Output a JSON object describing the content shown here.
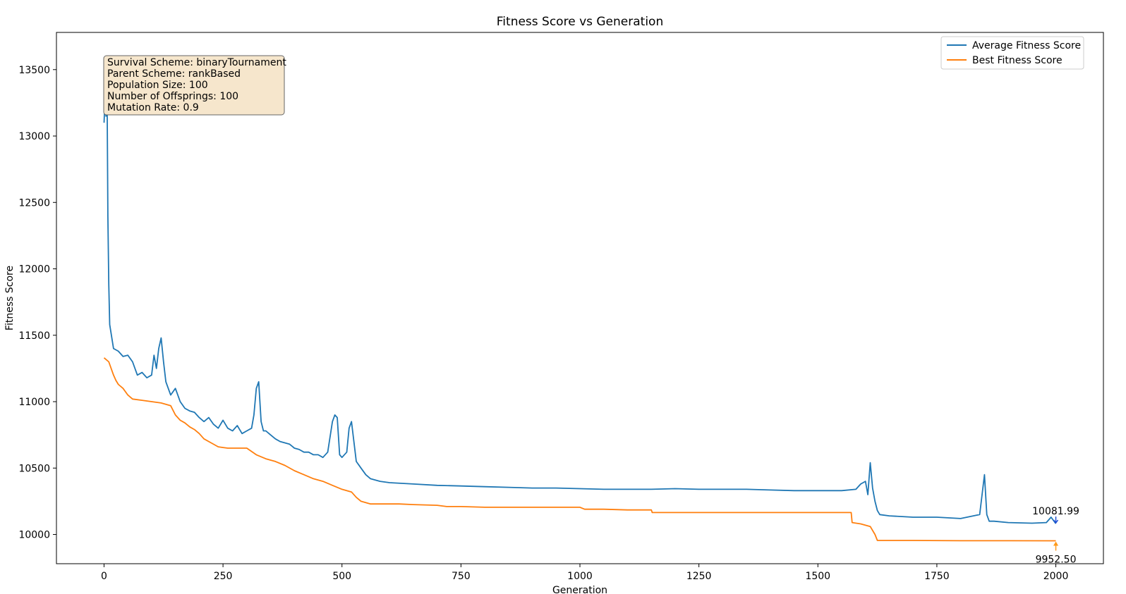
{
  "chart_data": {
    "type": "line",
    "title": "Fitness Score vs Generation",
    "xlabel": "Generation",
    "ylabel": "Fitness Score",
    "xlim": [
      -100,
      2100
    ],
    "ylim": [
      9780,
      13780
    ],
    "xticks": [
      0,
      250,
      500,
      750,
      1000,
      1250,
      1500,
      1750,
      2000
    ],
    "yticks": [
      10000,
      10500,
      11000,
      11500,
      12000,
      12500,
      13000,
      13500
    ],
    "grid": false,
    "legend_position": "top-right",
    "info_box": [
      "Survival Scheme: binaryTournament",
      "Parent Scheme: rankBased",
      "Population Size: 100",
      "Number of Offsprings: 100",
      "Mutation Rate: 0.9"
    ],
    "annotations": [
      {
        "text": "10081.99",
        "x": 2000,
        "y": 10081.99,
        "color": "#1f4fd6"
      },
      {
        "text": "9952.50",
        "x": 2000,
        "y": 9952.5,
        "color": "#ff9a1a"
      }
    ],
    "series": [
      {
        "name": "Average Fitness Score",
        "color": "#1f77b4",
        "x": [
          0,
          2,
          4,
          6,
          8,
          10,
          12,
          20,
          30,
          40,
          50,
          60,
          70,
          80,
          90,
          100,
          105,
          110,
          115,
          120,
          125,
          130,
          140,
          150,
          160,
          170,
          180,
          190,
          200,
          210,
          220,
          230,
          240,
          250,
          260,
          270,
          280,
          290,
          300,
          310,
          315,
          320,
          325,
          330,
          335,
          340,
          350,
          360,
          370,
          380,
          390,
          400,
          410,
          420,
          430,
          440,
          450,
          460,
          470,
          480,
          485,
          490,
          495,
          500,
          510,
          515,
          520,
          525,
          530,
          540,
          550,
          560,
          570,
          580,
          600,
          650,
          700,
          750,
          800,
          850,
          900,
          950,
          1000,
          1050,
          1100,
          1150,
          1200,
          1250,
          1300,
          1350,
          1400,
          1450,
          1500,
          1550,
          1580,
          1590,
          1600,
          1605,
          1610,
          1615,
          1620,
          1625,
          1630,
          1650,
          1700,
          1750,
          1800,
          1840,
          1850,
          1855,
          1860,
          1870,
          1900,
          1950,
          1980,
          1990,
          2000
        ],
        "y": [
          13100,
          13280,
          13150,
          13560,
          12400,
          11880,
          11580,
          11400,
          11380,
          11340,
          11350,
          11300,
          11200,
          11220,
          11180,
          11200,
          11350,
          11250,
          11400,
          11480,
          11300,
          11150,
          11050,
          11100,
          11000,
          10950,
          10930,
          10920,
          10880,
          10850,
          10880,
          10830,
          10800,
          10860,
          10800,
          10780,
          10820,
          10760,
          10780,
          10800,
          10900,
          11100,
          11150,
          10850,
          10780,
          10780,
          10750,
          10720,
          10700,
          10690,
          10680,
          10650,
          10640,
          10620,
          10620,
          10600,
          10600,
          10580,
          10620,
          10850,
          10900,
          10880,
          10600,
          10580,
          10620,
          10800,
          10850,
          10700,
          10550,
          10500,
          10450,
          10420,
          10410,
          10400,
          10390,
          10380,
          10370,
          10365,
          10360,
          10355,
          10350,
          10350,
          10345,
          10340,
          10340,
          10340,
          10345,
          10340,
          10340,
          10340,
          10335,
          10330,
          10330,
          10330,
          10340,
          10380,
          10400,
          10300,
          10540,
          10350,
          10250,
          10180,
          10150,
          10140,
          10130,
          10130,
          10120,
          10150,
          10450,
          10150,
          10100,
          10100,
          10090,
          10085,
          10090,
          10130,
          10081.99
        ]
      },
      {
        "name": "Best Fitness Score",
        "color": "#ff7f0e",
        "x": [
          0,
          10,
          20,
          25,
          30,
          40,
          50,
          60,
          80,
          100,
          120,
          140,
          150,
          160,
          170,
          180,
          190,
          200,
          210,
          220,
          240,
          250,
          260,
          280,
          300,
          320,
          340,
          360,
          380,
          400,
          420,
          440,
          460,
          480,
          500,
          520,
          530,
          540,
          560,
          600,
          620,
          650,
          700,
          720,
          750,
          800,
          850,
          900,
          1000,
          1010,
          1050,
          1100,
          1150,
          1152,
          1200,
          1300,
          1400,
          1500,
          1570,
          1572,
          1590,
          1610,
          1620,
          1625,
          1700,
          1800,
          1900,
          2000
        ],
        "y": [
          11330,
          11300,
          11200,
          11160,
          11130,
          11100,
          11050,
          11020,
          11010,
          11000,
          10990,
          10970,
          10900,
          10860,
          10840,
          10810,
          10790,
          10760,
          10720,
          10700,
          10660,
          10655,
          10650,
          10650,
          10650,
          10600,
          10570,
          10550,
          10520,
          10480,
          10450,
          10420,
          10400,
          10370,
          10340,
          10320,
          10280,
          10250,
          10230,
          10230,
          10230,
          10225,
          10220,
          10210,
          10210,
          10205,
          10205,
          10205,
          10205,
          10190,
          10190,
          10185,
          10185,
          10165,
          10165,
          10165,
          10165,
          10165,
          10165,
          10090,
          10080,
          10060,
          10000,
          9955,
          9955,
          9953,
          9953,
          9952.5
        ]
      }
    ]
  }
}
